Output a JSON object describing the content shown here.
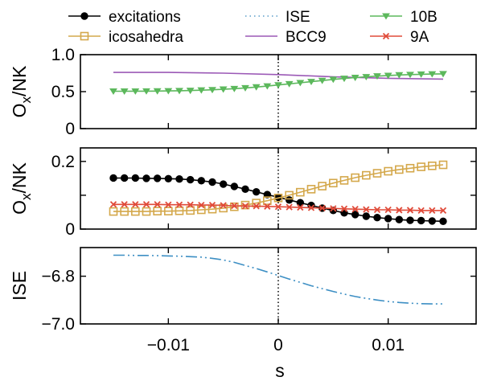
{
  "chart_data": {
    "type": "line",
    "xlabel": "s",
    "xlim": [
      -0.018,
      0.018
    ],
    "xticks": [
      {
        "value": -0.01,
        "label": "−0.01"
      },
      {
        "value": 0,
        "label": "0"
      },
      {
        "value": 0.01,
        "label": "0.01"
      }
    ],
    "legend": {
      "placement": "top",
      "entries": [
        {
          "label": "excitations",
          "color": "#000000",
          "marker": "filled-circle",
          "line": "solid"
        },
        {
          "label": "ISE",
          "color": "#5a9ec9",
          "marker": "none",
          "line": "dotted"
        },
        {
          "label": "10B",
          "color": "#5cb85c",
          "marker": "filled-triangle-down",
          "line": "solid"
        },
        {
          "label": "icosahedra",
          "color": "#d4a84b",
          "marker": "open-square",
          "line": "solid"
        },
        {
          "label": "BCC9",
          "color": "#9b59b6",
          "marker": "none",
          "line": "solid"
        },
        {
          "label": "9A",
          "color": "#e04b3a",
          "marker": "x",
          "line": "solid"
        }
      ]
    },
    "reference_line": {
      "x": 0,
      "style": "dotted"
    },
    "panels": [
      {
        "ylabel_main": "O",
        "ylabel_sub": "x",
        "ylabel_tail": "/NK",
        "ylim": [
          0,
          1.0
        ],
        "yticks": [
          {
            "value": 0,
            "label": "0"
          },
          {
            "value": 0.5,
            "label": "0.5"
          },
          {
            "value": 1.0,
            "label": "1.0"
          }
        ],
        "series": [
          {
            "name": "BCC9",
            "color": "#9b59b6",
            "marker": "none",
            "line": "solid",
            "x": [
              -0.015,
              -0.01,
              -0.005,
              0,
              0.005,
              0.01,
              0.015
            ],
            "y": [
              0.76,
              0.76,
              0.75,
              0.73,
              0.7,
              0.68,
              0.67
            ]
          },
          {
            "name": "10B",
            "color": "#5cb85c",
            "marker": "filled-triangle-down",
            "line": "solid",
            "x": [
              -0.015,
              -0.014,
              -0.013,
              -0.012,
              -0.011,
              -0.01,
              -0.009,
              -0.008,
              -0.007,
              -0.006,
              -0.005,
              -0.004,
              -0.003,
              -0.002,
              -0.001,
              0,
              0.001,
              0.002,
              0.003,
              0.004,
              0.005,
              0.006,
              0.007,
              0.008,
              0.009,
              0.01,
              0.011,
              0.012,
              0.013,
              0.014,
              0.015
            ],
            "y": [
              0.505,
              0.505,
              0.506,
              0.507,
              0.508,
              0.51,
              0.512,
              0.515,
              0.52,
              0.525,
              0.532,
              0.54,
              0.55,
              0.562,
              0.575,
              0.59,
              0.605,
              0.62,
              0.635,
              0.65,
              0.665,
              0.678,
              0.69,
              0.7,
              0.71,
              0.718,
              0.725,
              0.73,
              0.735,
              0.738,
              0.74
            ]
          }
        ]
      },
      {
        "ylabel_main": "O",
        "ylabel_sub": "x",
        "ylabel_tail": "/NK",
        "ylim": [
          0,
          0.24
        ],
        "yticks": [
          {
            "value": 0,
            "label": "0"
          },
          {
            "value": 0.1,
            "label": ""
          },
          {
            "value": 0.2,
            "label": "0.2"
          }
        ],
        "series": [
          {
            "name": "excitations",
            "color": "#000000",
            "marker": "filled-circle",
            "line": "solid",
            "x": [
              -0.015,
              -0.014,
              -0.013,
              -0.012,
              -0.011,
              -0.01,
              -0.009,
              -0.008,
              -0.007,
              -0.006,
              -0.005,
              -0.004,
              -0.003,
              -0.002,
              -0.001,
              0,
              0.001,
              0.002,
              0.003,
              0.004,
              0.005,
              0.006,
              0.007,
              0.008,
              0.009,
              0.01,
              0.011,
              0.012,
              0.013,
              0.014,
              0.015
            ],
            "y": [
              0.151,
              0.151,
              0.151,
              0.15,
              0.15,
              0.149,
              0.148,
              0.146,
              0.143,
              0.139,
              0.133,
              0.126,
              0.118,
              0.11,
              0.102,
              0.094,
              0.086,
              0.078,
              0.07,
              0.062,
              0.055,
              0.048,
              0.043,
              0.038,
              0.034,
              0.031,
              0.028,
              0.026,
              0.025,
              0.024,
              0.023
            ]
          },
          {
            "name": "icosahedra",
            "color": "#d4a84b",
            "marker": "open-square",
            "line": "solid",
            "x": [
              -0.015,
              -0.014,
              -0.013,
              -0.012,
              -0.011,
              -0.01,
              -0.009,
              -0.008,
              -0.007,
              -0.006,
              -0.005,
              -0.004,
              -0.003,
              -0.002,
              -0.001,
              0,
              0.001,
              0.002,
              0.003,
              0.004,
              0.005,
              0.006,
              0.007,
              0.008,
              0.009,
              0.01,
              0.011,
              0.012,
              0.013,
              0.014,
              0.015
            ],
            "y": [
              0.052,
              0.052,
              0.052,
              0.052,
              0.053,
              0.053,
              0.054,
              0.055,
              0.057,
              0.059,
              0.062,
              0.066,
              0.071,
              0.077,
              0.084,
              0.092,
              0.1,
              0.109,
              0.118,
              0.127,
              0.136,
              0.144,
              0.152,
              0.159,
              0.165,
              0.171,
              0.176,
              0.18,
              0.184,
              0.187,
              0.19
            ]
          },
          {
            "name": "9A",
            "color": "#e04b3a",
            "marker": "x",
            "line": "solid",
            "x": [
              -0.015,
              -0.014,
              -0.013,
              -0.012,
              -0.011,
              -0.01,
              -0.009,
              -0.008,
              -0.007,
              -0.006,
              -0.005,
              -0.004,
              -0.003,
              -0.002,
              -0.001,
              0,
              0.001,
              0.002,
              0.003,
              0.004,
              0.005,
              0.006,
              0.007,
              0.008,
              0.009,
              0.01,
              0.011,
              0.012,
              0.013,
              0.014,
              0.015
            ],
            "y": [
              0.073,
              0.073,
              0.073,
              0.073,
              0.073,
              0.072,
              0.072,
              0.072,
              0.071,
              0.071,
              0.07,
              0.069,
              0.068,
              0.068,
              0.067,
              0.066,
              0.065,
              0.064,
              0.063,
              0.062,
              0.061,
              0.06,
              0.059,
              0.058,
              0.057,
              0.057,
              0.056,
              0.056,
              0.055,
              0.055,
              0.055
            ]
          }
        ]
      },
      {
        "ylabel_main": "ISE",
        "ylabel_sub": "",
        "ylabel_tail": "",
        "ylim": [
          -7.0,
          -6.68
        ],
        "yticks": [
          {
            "value": -6.8,
            "label": "−6.8"
          },
          {
            "value": -7.0,
            "label": "−7.0"
          }
        ],
        "series": [
          {
            "name": "ISE",
            "color": "#3d8fc4",
            "marker": "none",
            "line": "dashdotdot",
            "x": [
              -0.015,
              -0.014,
              -0.013,
              -0.012,
              -0.011,
              -0.01,
              -0.009,
              -0.008,
              -0.007,
              -0.006,
              -0.005,
              -0.004,
              -0.003,
              -0.002,
              -0.001,
              0,
              0.001,
              0.002,
              0.003,
              0.004,
              0.005,
              0.006,
              0.007,
              0.008,
              0.009,
              0.01,
              0.011,
              0.012,
              0.013,
              0.014,
              0.015
            ],
            "y": [
              -6.712,
              -6.712,
              -6.713,
              -6.713,
              -6.714,
              -6.715,
              -6.716,
              -6.718,
              -6.72,
              -6.725,
              -6.732,
              -6.742,
              -6.755,
              -6.768,
              -6.782,
              -6.797,
              -6.812,
              -6.826,
              -6.84,
              -6.852,
              -6.864,
              -6.875,
              -6.885,
              -6.893,
              -6.9,
              -6.906,
              -6.91,
              -6.913,
              -6.915,
              -6.916,
              -6.916
            ]
          }
        ]
      }
    ]
  }
}
